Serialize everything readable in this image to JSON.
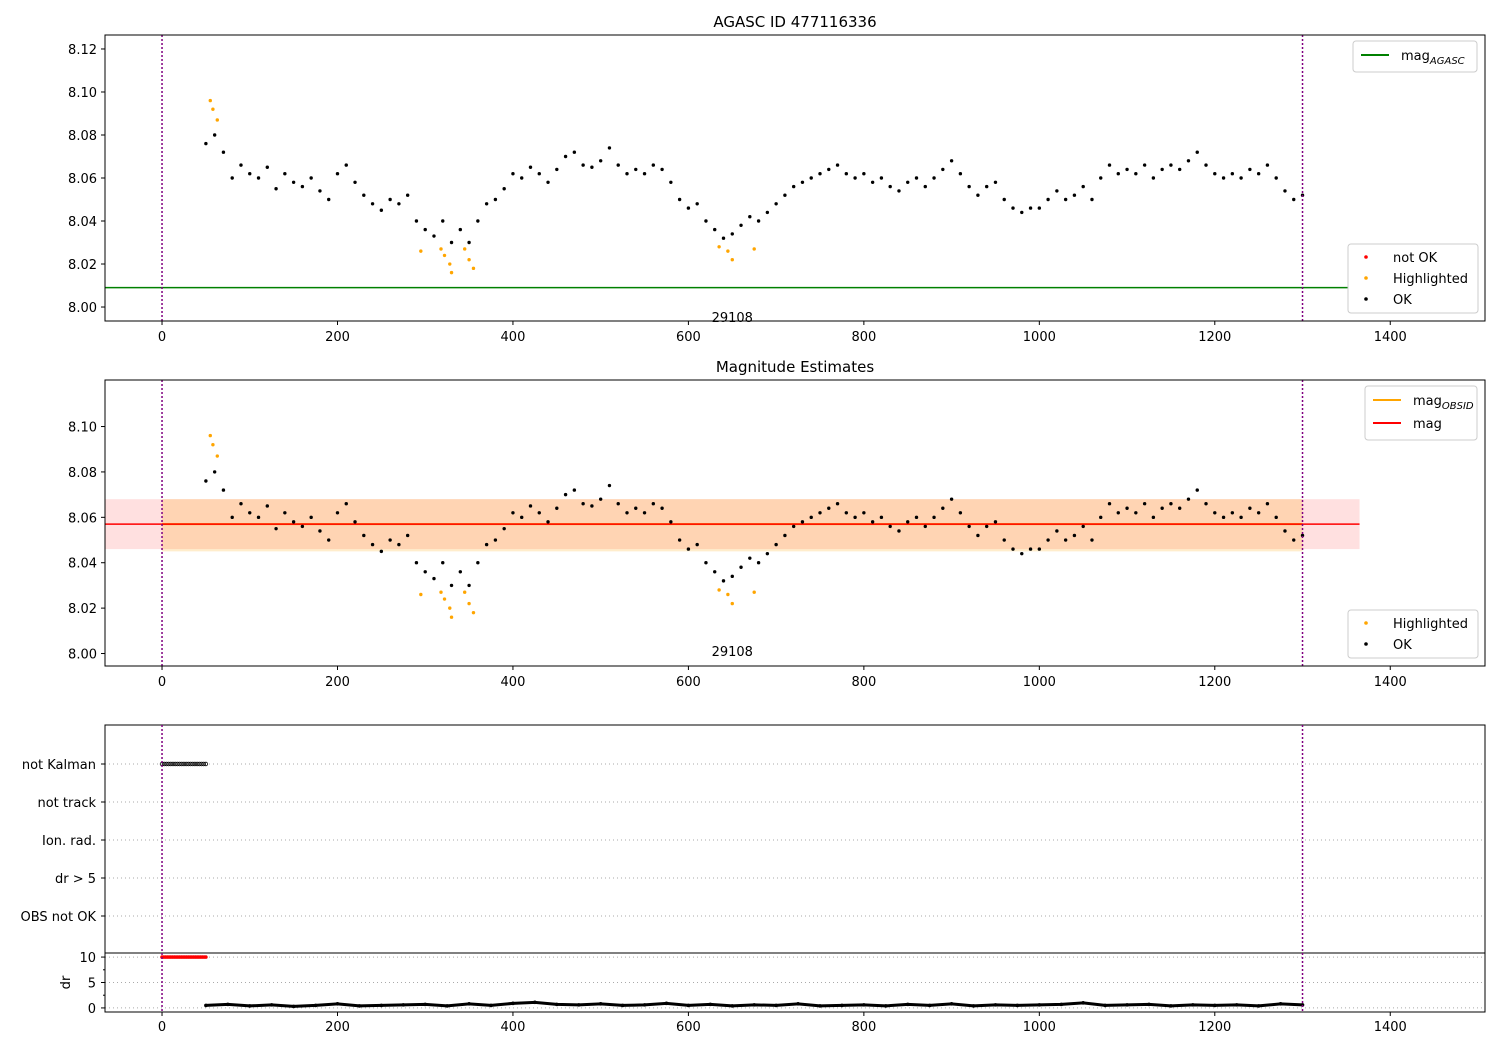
{
  "chart_data": [
    {
      "type": "scatter",
      "title": "AGASC ID 477116336",
      "xlim": [
        -65,
        1508
      ],
      "ylim": [
        7.9935,
        8.1265
      ],
      "xticks": [
        0,
        200,
        400,
        600,
        800,
        1000,
        1200,
        1400
      ],
      "yticks": [
        8.0,
        8.02,
        8.04,
        8.06,
        8.08,
        8.1,
        8.12
      ],
      "annotation": {
        "text": "29108",
        "x": 650,
        "y": 7.993
      },
      "vlines": [
        0,
        1300
      ],
      "mag_agasc": 8.009,
      "legend_lines": [
        {
          "label": "mag",
          "sub": "AGASC",
          "color": "#008000"
        }
      ],
      "legend_points": [
        {
          "label": "not OK",
          "color": "#ff0000"
        },
        {
          "label": "Highlighted",
          "color": "#ffa500"
        },
        {
          "label": "OK",
          "color": "#000000"
        }
      ]
    },
    {
      "type": "scatter",
      "title": "Magnitude Estimates",
      "xlim": [
        -65,
        1508
      ],
      "ylim": [
        7.9945,
        8.1205
      ],
      "xticks": [
        0,
        200,
        400,
        600,
        800,
        1000,
        1200,
        1400
      ],
      "yticks": [
        8.0,
        8.02,
        8.04,
        8.06,
        8.08,
        8.1
      ],
      "annotation": {
        "text": "29108",
        "x": 650,
        "y": 7.999
      },
      "vlines": [
        0,
        1300
      ],
      "mag_obsid": 8.057,
      "mag": 8.057,
      "mag_band": [
        8.046,
        8.068
      ],
      "mag_obsid_band": [
        8.045,
        8.068
      ],
      "legend_lines": [
        {
          "label": "mag",
          "sub": "OBSID",
          "color": "#ffa500"
        },
        {
          "label": "mag",
          "sub": "",
          "color": "#ff0000"
        }
      ],
      "legend_points": [
        {
          "label": "Highlighted",
          "color": "#ffa500"
        },
        {
          "label": "OK",
          "color": "#000000"
        }
      ]
    },
    {
      "type": "scatter",
      "title": "",
      "categories": [
        "not Kalman",
        "not track",
        "Ion. rad.",
        "dr > 5",
        "OBS not OK"
      ],
      "flags": {
        "not Kalman": [
          0,
          50
        ]
      },
      "dr_ylabel": "dr",
      "dr_yticks": [
        0,
        5,
        10
      ],
      "dr_ylim": [
        -0.8,
        10.8
      ],
      "dr_not_ok": {
        "x": [
          0,
          50
        ],
        "y": 10
      },
      "dr_ok": [
        [
          50,
          0.5
        ],
        [
          75,
          0.7
        ],
        [
          100,
          0.4
        ],
        [
          125,
          0.6
        ],
        [
          150,
          0.3
        ],
        [
          175,
          0.5
        ],
        [
          200,
          0.8
        ],
        [
          225,
          0.4
        ],
        [
          250,
          0.5
        ],
        [
          275,
          0.6
        ],
        [
          300,
          0.7
        ],
        [
          325,
          0.4
        ],
        [
          350,
          0.8
        ],
        [
          375,
          0.5
        ],
        [
          400,
          0.9
        ],
        [
          425,
          1.1
        ],
        [
          450,
          0.7
        ],
        [
          475,
          0.6
        ],
        [
          500,
          0.8
        ],
        [
          525,
          0.5
        ],
        [
          550,
          0.6
        ],
        [
          575,
          0.9
        ],
        [
          600,
          0.5
        ],
        [
          625,
          0.7
        ],
        [
          650,
          0.4
        ],
        [
          675,
          0.6
        ],
        [
          700,
          0.5
        ],
        [
          725,
          0.8
        ],
        [
          750,
          0.4
        ],
        [
          775,
          0.5
        ],
        [
          800,
          0.6
        ],
        [
          825,
          0.4
        ],
        [
          850,
          0.7
        ],
        [
          875,
          0.5
        ],
        [
          900,
          0.8
        ],
        [
          925,
          0.4
        ],
        [
          950,
          0.6
        ],
        [
          975,
          0.5
        ],
        [
          1000,
          0.6
        ],
        [
          1025,
          0.7
        ],
        [
          1050,
          1.0
        ],
        [
          1075,
          0.5
        ],
        [
          1100,
          0.6
        ],
        [
          1125,
          0.7
        ],
        [
          1150,
          0.4
        ],
        [
          1175,
          0.6
        ],
        [
          1200,
          0.5
        ],
        [
          1225,
          0.6
        ],
        [
          1250,
          0.4
        ],
        [
          1275,
          0.8
        ],
        [
          1300,
          0.6
        ]
      ]
    }
  ],
  "series": {
    "ok": [
      [
        50,
        8.076
      ],
      [
        60,
        8.08
      ],
      [
        70,
        8.072
      ],
      [
        80,
        8.06
      ],
      [
        90,
        8.066
      ],
      [
        100,
        8.062
      ],
      [
        110,
        8.06
      ],
      [
        120,
        8.065
      ],
      [
        130,
        8.055
      ],
      [
        140,
        8.062
      ],
      [
        150,
        8.058
      ],
      [
        160,
        8.056
      ],
      [
        170,
        8.06
      ],
      [
        180,
        8.054
      ],
      [
        190,
        8.05
      ],
      [
        200,
        8.062
      ],
      [
        210,
        8.066
      ],
      [
        220,
        8.058
      ],
      [
        230,
        8.052
      ],
      [
        240,
        8.048
      ],
      [
        250,
        8.045
      ],
      [
        260,
        8.05
      ],
      [
        270,
        8.048
      ],
      [
        280,
        8.052
      ],
      [
        290,
        8.04
      ],
      [
        300,
        8.036
      ],
      [
        310,
        8.033
      ],
      [
        320,
        8.04
      ],
      [
        330,
        8.03
      ],
      [
        340,
        8.036
      ],
      [
        350,
        8.03
      ],
      [
        360,
        8.04
      ],
      [
        370,
        8.048
      ],
      [
        380,
        8.05
      ],
      [
        390,
        8.055
      ],
      [
        400,
        8.062
      ],
      [
        410,
        8.06
      ],
      [
        420,
        8.065
      ],
      [
        430,
        8.062
      ],
      [
        440,
        8.058
      ],
      [
        450,
        8.064
      ],
      [
        460,
        8.07
      ],
      [
        470,
        8.072
      ],
      [
        480,
        8.066
      ],
      [
        490,
        8.065
      ],
      [
        500,
        8.068
      ],
      [
        510,
        8.074
      ],
      [
        520,
        8.066
      ],
      [
        530,
        8.062
      ],
      [
        540,
        8.064
      ],
      [
        550,
        8.062
      ],
      [
        560,
        8.066
      ],
      [
        570,
        8.064
      ],
      [
        580,
        8.058
      ],
      [
        590,
        8.05
      ],
      [
        600,
        8.046
      ],
      [
        610,
        8.048
      ],
      [
        620,
        8.04
      ],
      [
        630,
        8.036
      ],
      [
        640,
        8.032
      ],
      [
        650,
        8.034
      ],
      [
        660,
        8.038
      ],
      [
        670,
        8.042
      ],
      [
        680,
        8.04
      ],
      [
        690,
        8.044
      ],
      [
        700,
        8.048
      ],
      [
        710,
        8.052
      ],
      [
        720,
        8.056
      ],
      [
        730,
        8.058
      ],
      [
        740,
        8.06
      ],
      [
        750,
        8.062
      ],
      [
        760,
        8.064
      ],
      [
        770,
        8.066
      ],
      [
        780,
        8.062
      ],
      [
        790,
        8.06
      ],
      [
        800,
        8.062
      ],
      [
        810,
        8.058
      ],
      [
        820,
        8.06
      ],
      [
        830,
        8.056
      ],
      [
        840,
        8.054
      ],
      [
        850,
        8.058
      ],
      [
        860,
        8.06
      ],
      [
        870,
        8.056
      ],
      [
        880,
        8.06
      ],
      [
        890,
        8.064
      ],
      [
        900,
        8.068
      ],
      [
        910,
        8.062
      ],
      [
        920,
        8.056
      ],
      [
        930,
        8.052
      ],
      [
        940,
        8.056
      ],
      [
        950,
        8.058
      ],
      [
        960,
        8.05
      ],
      [
        970,
        8.046
      ],
      [
        980,
        8.044
      ],
      [
        990,
        8.046
      ],
      [
        1000,
        8.046
      ],
      [
        1010,
        8.05
      ],
      [
        1020,
        8.054
      ],
      [
        1030,
        8.05
      ],
      [
        1040,
        8.052
      ],
      [
        1050,
        8.056
      ],
      [
        1060,
        8.05
      ],
      [
        1070,
        8.06
      ],
      [
        1080,
        8.066
      ],
      [
        1090,
        8.062
      ],
      [
        1100,
        8.064
      ],
      [
        1110,
        8.062
      ],
      [
        1120,
        8.066
      ],
      [
        1130,
        8.06
      ],
      [
        1140,
        8.064
      ],
      [
        1150,
        8.066
      ],
      [
        1160,
        8.064
      ],
      [
        1170,
        8.068
      ],
      [
        1180,
        8.072
      ],
      [
        1190,
        8.066
      ],
      [
        1200,
        8.062
      ],
      [
        1210,
        8.06
      ],
      [
        1220,
        8.062
      ],
      [
        1230,
        8.06
      ],
      [
        1240,
        8.064
      ],
      [
        1250,
        8.062
      ],
      [
        1260,
        8.066
      ],
      [
        1270,
        8.06
      ],
      [
        1280,
        8.054
      ],
      [
        1290,
        8.05
      ],
      [
        1300,
        8.052
      ]
    ],
    "highlighted": [
      [
        55,
        8.096
      ],
      [
        58,
        8.092
      ],
      [
        63,
        8.087
      ],
      [
        295,
        8.026
      ],
      [
        318,
        8.027
      ],
      [
        322,
        8.024
      ],
      [
        328,
        8.02
      ],
      [
        330,
        8.016
      ],
      [
        345,
        8.027
      ],
      [
        350,
        8.022
      ],
      [
        355,
        8.018
      ],
      [
        635,
        8.028
      ],
      [
        645,
        8.026
      ],
      [
        650,
        8.022
      ],
      [
        675,
        8.027
      ]
    ]
  },
  "colors": {
    "ok": "#000000",
    "highlighted": "#ffa500",
    "not_ok": "#ff0000",
    "vline": "#800080",
    "agasc": "#008000",
    "mag": "#ff0000",
    "mag_obsid": "#ffa500"
  }
}
